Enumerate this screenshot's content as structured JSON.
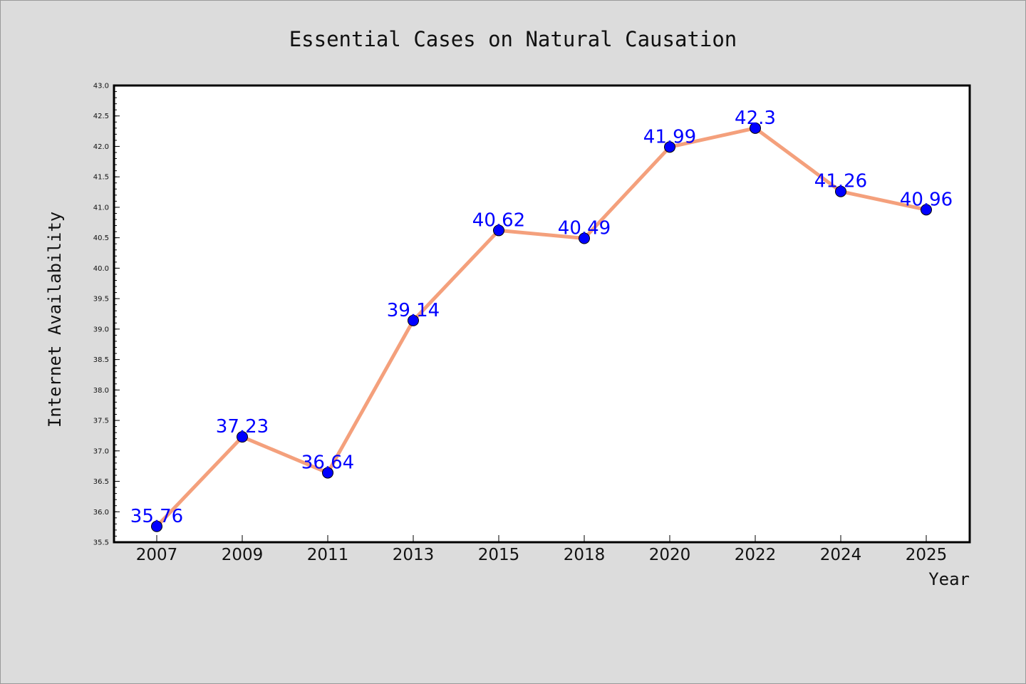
{
  "chart_data": {
    "type": "line",
    "title": "Essential Cases on Natural Causation",
    "xlabel": "Year",
    "ylabel": "Internet Availability",
    "categories": [
      "2007",
      "2009",
      "2011",
      "2013",
      "2015",
      "2018",
      "2020",
      "2022",
      "2024",
      "2025"
    ],
    "series": [
      {
        "values": [
          35.76,
          37.23,
          36.64,
          39.14,
          40.62,
          40.49,
          41.99,
          42.3,
          41.26,
          40.96
        ],
        "data_labels": [
          "35.76",
          "37.23",
          "36.64",
          "39.14",
          "40.62",
          "40.49",
          "41.99",
          "42.3",
          "41.26",
          "40.96"
        ]
      }
    ],
    "ylim": [
      35.5,
      43.0
    ],
    "yticks": [
      "35.5",
      "36.0",
      "36.5",
      "37.0",
      "37.5",
      "38.0",
      "38.5",
      "39.0",
      "39.5",
      "40.0",
      "40.5",
      "41.0",
      "41.5",
      "42.0",
      "42.5",
      "43.0"
    ],
    "grid": false,
    "colors": {
      "line": "#f4a07c",
      "marker": "#0000ff",
      "data_label": "#0000ff",
      "figure_background": "#dcdcdc",
      "plot_background": "#ffffff"
    }
  }
}
